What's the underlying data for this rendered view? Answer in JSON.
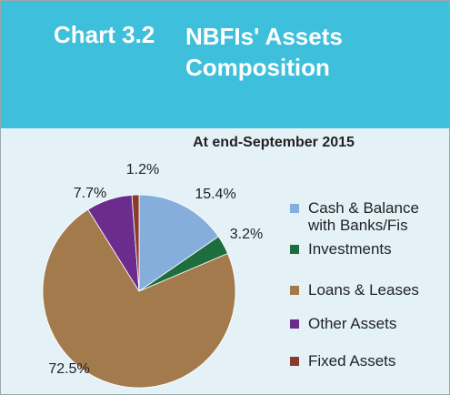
{
  "chart_data": {
    "type": "pie",
    "chart_number": "Chart 3.2",
    "title": "NBFIs' Assets Composition",
    "subtitle": "At end-September 2015",
    "categories": [
      "Cash & Balance with Banks/Fis",
      "Investments",
      "Loans & Leases",
      "Other Assets",
      "Fixed Assets"
    ],
    "values": [
      15.4,
      3.2,
      72.5,
      7.7,
      1.2
    ],
    "value_labels": [
      "15.4%",
      "3.2%",
      "72.5%",
      "7.7%",
      "1.2%"
    ],
    "colors": [
      "#86aedd",
      "#1d6e3e",
      "#a27a4c",
      "#6b2c8e",
      "#8a3b2b"
    ],
    "legend": "right"
  }
}
